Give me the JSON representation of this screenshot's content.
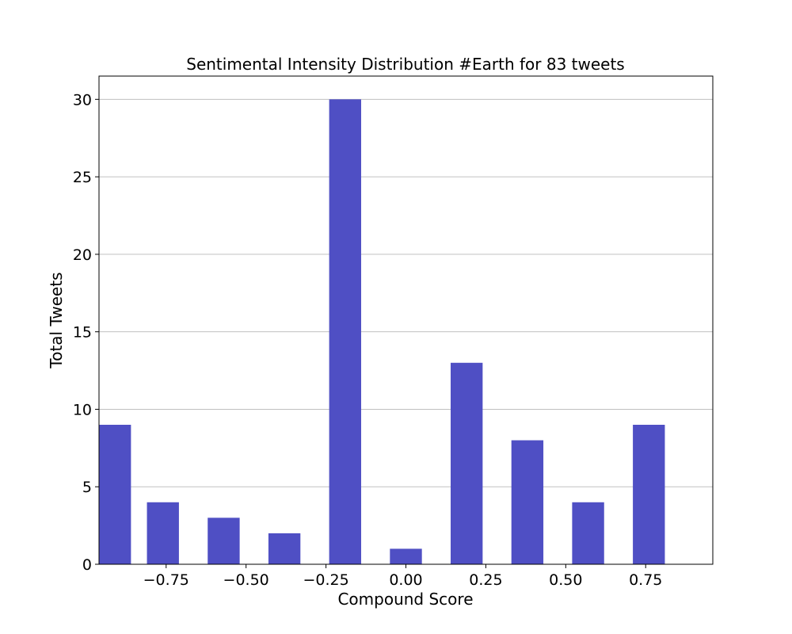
{
  "chart_data": {
    "type": "bar",
    "title": "Sentimental Intensity Distribution #Earth for 83 tweets",
    "xlabel": "Compound Score",
    "ylabel": "Total Tweets",
    "xlim": [
      -0.96,
      0.96
    ],
    "ylim": [
      0,
      31.5
    ],
    "grid": "y",
    "bar_color": "#4f4fc4",
    "bar_width": 0.1,
    "x_ticks": [
      -0.75,
      -0.5,
      -0.25,
      0.0,
      0.25,
      0.5,
      0.75
    ],
    "x_tick_labels": [
      "−0.75",
      "−0.50",
      "−0.25",
      "0.00",
      "0.25",
      "0.50",
      "0.75"
    ],
    "y_ticks": [
      0,
      5,
      10,
      15,
      20,
      25,
      30
    ],
    "y_tick_labels": [
      "0",
      "5",
      "10",
      "15",
      "20",
      "25",
      "30"
    ],
    "bars": [
      {
        "x": -0.96,
        "value": 9
      },
      {
        "x": -0.81,
        "value": 4
      },
      {
        "x": -0.62,
        "value": 3
      },
      {
        "x": -0.43,
        "value": 2
      },
      {
        "x": -0.24,
        "value": 30
      },
      {
        "x": -0.05,
        "value": 1
      },
      {
        "x": 0.14,
        "value": 13
      },
      {
        "x": 0.33,
        "value": 8
      },
      {
        "x": 0.52,
        "value": 4
      },
      {
        "x": 0.71,
        "value": 9
      }
    ]
  }
}
